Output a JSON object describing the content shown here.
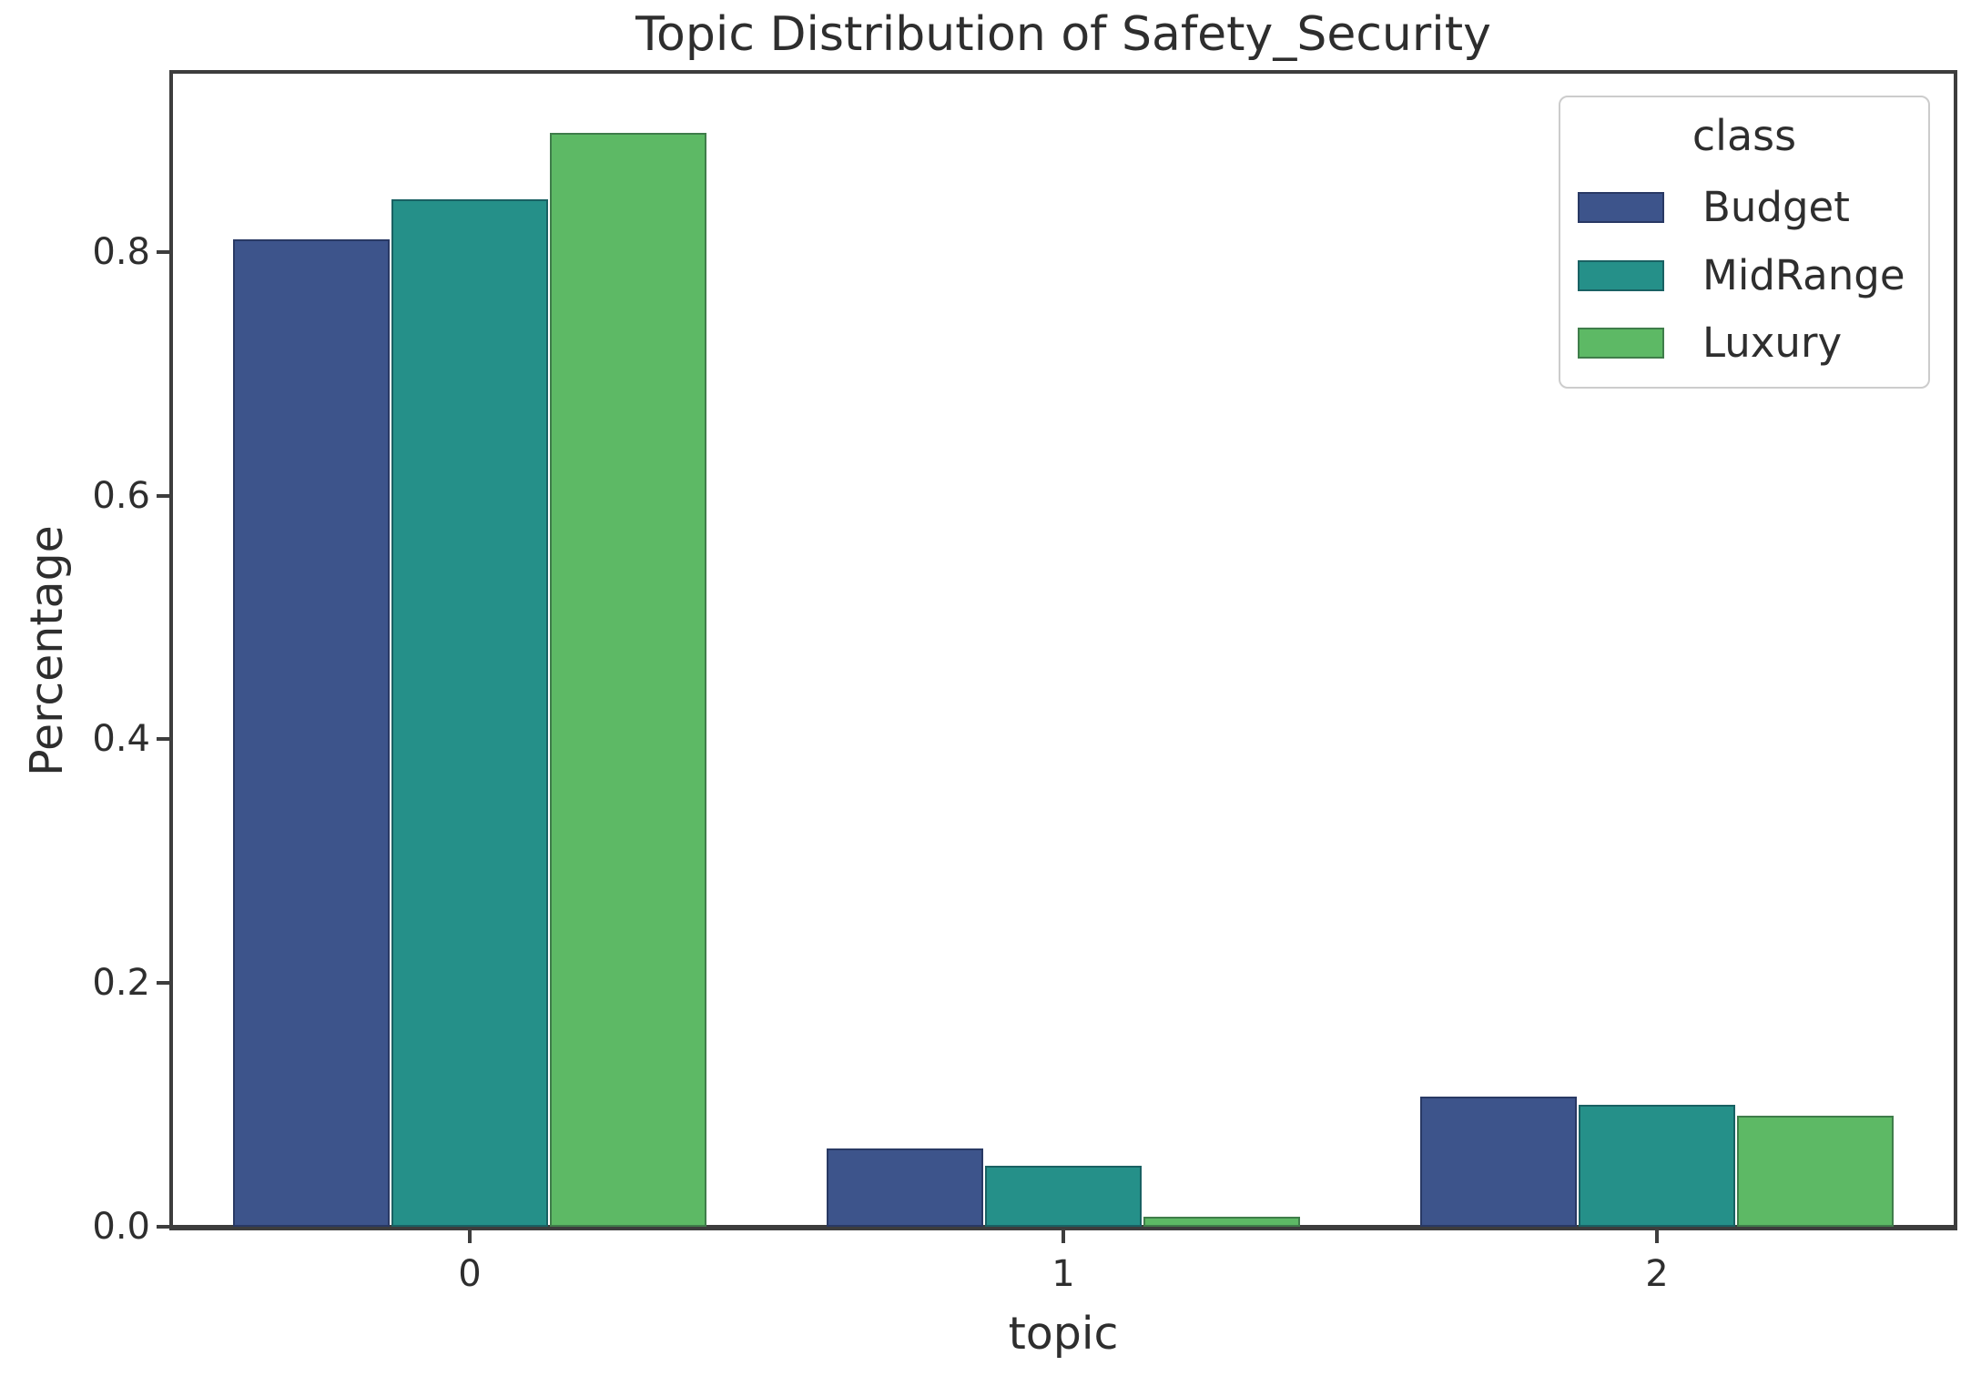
{
  "chart_data": {
    "type": "bar",
    "title": "Topic Distribution of Safety_Security",
    "xlabel": "topic",
    "ylabel": "Percentage",
    "categories": [
      "0",
      "1",
      "2"
    ],
    "series": [
      {
        "name": "Budget",
        "color": "#3d548b",
        "values": [
          0.81,
          0.064,
          0.107
        ]
      },
      {
        "name": "MidRange",
        "color": "#259089",
        "values": [
          0.843,
          0.05,
          0.1
        ]
      },
      {
        "name": "Luxury",
        "color": "#5db965",
        "values": [
          0.898,
          0.008,
          0.091
        ]
      }
    ],
    "y_ticks": [
      "0.0",
      "0.2",
      "0.4",
      "0.6",
      "0.8"
    ],
    "y_tick_values": [
      0.0,
      0.2,
      0.4,
      0.6,
      0.8
    ],
    "ylim": [
      0,
      0.947
    ],
    "legend_title": "class",
    "legend_position": "upper right",
    "grid": false,
    "spine_color": "#3d3d3d",
    "text_color": "#2e2e2e",
    "background_color": "#ffffff"
  }
}
